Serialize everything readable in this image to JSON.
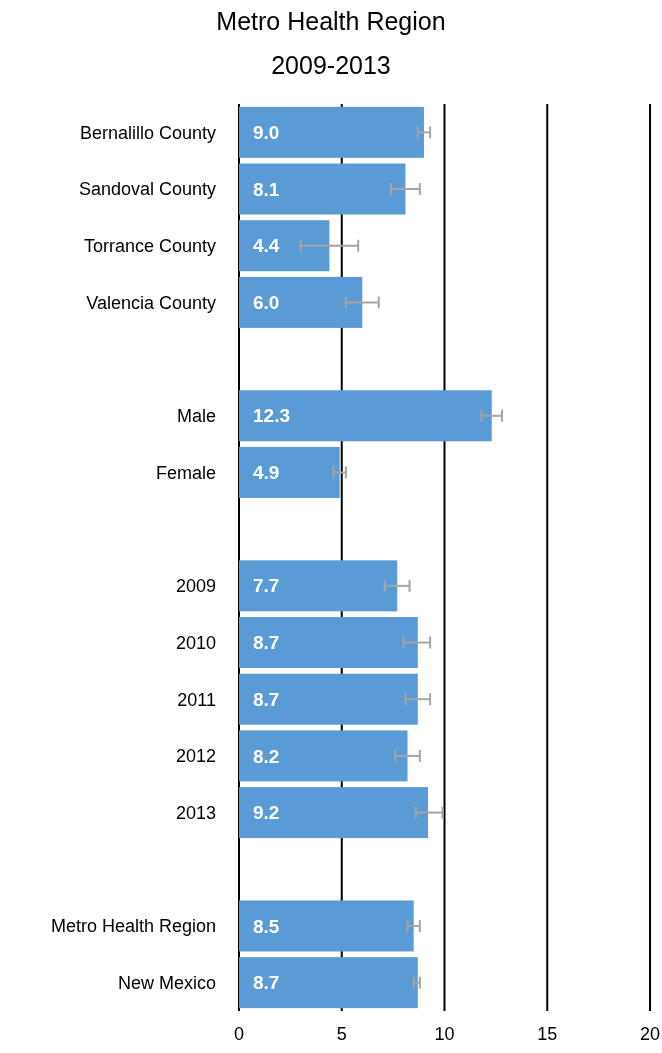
{
  "chart_data": {
    "type": "bar",
    "orientation": "horizontal",
    "title": "Metro Health Region",
    "subtitle": "2009-2013",
    "categories": [
      "Bernalillo County",
      "Sandoval County",
      "Torrance County",
      "Valencia County",
      null,
      "Male",
      "Female",
      null,
      "2009",
      "2010",
      "2011",
      "2012",
      "2013",
      null,
      "Metro Health Region",
      "New Mexico"
    ],
    "values": [
      9.0,
      8.1,
      4.4,
      6.0,
      null,
      12.3,
      4.9,
      null,
      7.7,
      8.7,
      8.7,
      8.2,
      9.2,
      null,
      8.5,
      8.7
    ],
    "value_labels": [
      "9.0",
      "8.1",
      "4.4",
      "6.0",
      null,
      "12.3",
      "4.9",
      null,
      "7.7",
      "8.7",
      "8.7",
      "8.2",
      "9.2",
      null,
      "8.5",
      "8.7"
    ],
    "errors": [
      [
        8.7,
        9.3
      ],
      [
        7.4,
        8.8
      ],
      [
        3.0,
        5.8
      ],
      [
        5.2,
        6.8
      ],
      null,
      [
        11.8,
        12.8
      ],
      [
        4.6,
        5.2
      ],
      null,
      [
        7.1,
        8.3
      ],
      [
        8.0,
        9.3
      ],
      [
        8.1,
        9.3
      ],
      [
        7.6,
        8.8
      ],
      [
        8.6,
        9.9
      ],
      null,
      [
        8.2,
        8.8
      ],
      [
        8.5,
        8.8
      ]
    ],
    "color": "#5b9bd5",
    "xlim": [
      0,
      20
    ],
    "xticks": [
      0,
      5,
      10,
      15,
      20
    ],
    "grid": "x"
  }
}
